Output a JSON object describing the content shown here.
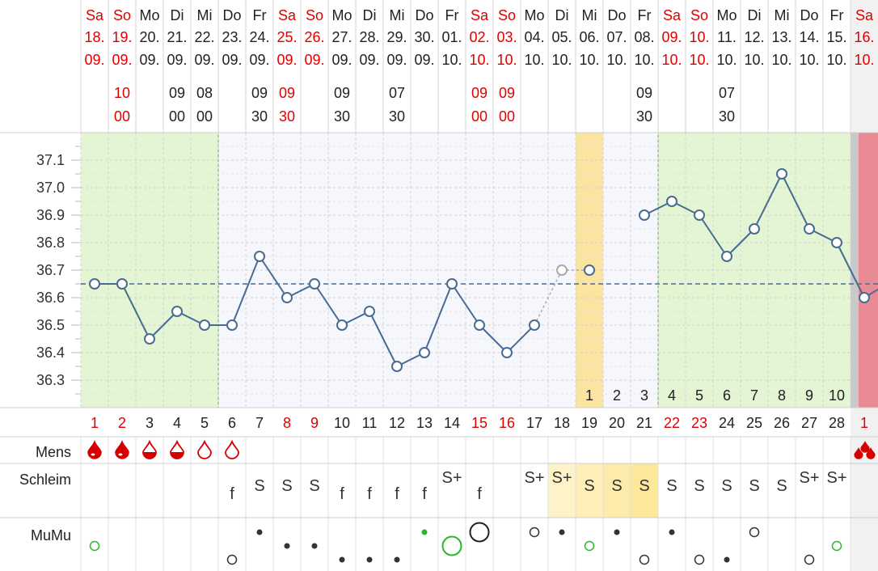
{
  "colors": {
    "weekend": "#e00000",
    "weekday": "#222222",
    "line": "#4a6b91",
    "infertile_bg": "#e3f5d2",
    "infertile_border": "#6aa84f",
    "ovulation_bg": "#fbe3a0",
    "mucus_highlight": "#fde89a",
    "blood": "#d40000",
    "next_cycle_bg": "#e88b94",
    "mumu_green": "#2db52d"
  },
  "chart_data": {
    "type": "line",
    "title": "",
    "ylabel": "",
    "ylim": [
      36.2,
      37.2
    ],
    "yticks": [
      "37.1",
      "37.0",
      "36.9",
      "36.8",
      "36.7",
      "36.6",
      "36.5",
      "36.4",
      "36.3"
    ],
    "coverline": 36.65,
    "days": [
      {
        "wd": "Sa",
        "d": "18.",
        "m": "09.",
        "hh": "",
        "mm": "",
        "cd": "1",
        "we": true,
        "temp": 36.65
      },
      {
        "wd": "So",
        "d": "19.",
        "m": "09.",
        "hh": "10",
        "mm": "00",
        "cd": "2",
        "we": true,
        "temp": 36.65
      },
      {
        "wd": "Mo",
        "d": "20.",
        "m": "09.",
        "hh": "",
        "mm": "",
        "cd": "3",
        "we": false,
        "temp": 36.45
      },
      {
        "wd": "Di",
        "d": "21.",
        "m": "09.",
        "hh": "09",
        "mm": "00",
        "cd": "4",
        "we": false,
        "temp": 36.55
      },
      {
        "wd": "Mi",
        "d": "22.",
        "m": "09.",
        "hh": "08",
        "mm": "00",
        "cd": "5",
        "we": false,
        "temp": 36.5
      },
      {
        "wd": "Do",
        "d": "23.",
        "m": "09.",
        "hh": "",
        "mm": "",
        "cd": "6",
        "we": false,
        "temp": 36.5
      },
      {
        "wd": "Fr",
        "d": "24.",
        "m": "09.",
        "hh": "09",
        "mm": "30",
        "cd": "7",
        "we": false,
        "temp": 36.75
      },
      {
        "wd": "Sa",
        "d": "25.",
        "m": "09.",
        "hh": "09",
        "mm": "30",
        "cd": "8",
        "we": true,
        "temp": 36.6
      },
      {
        "wd": "So",
        "d": "26.",
        "m": "09.",
        "hh": "",
        "mm": "",
        "cd": "9",
        "we": true,
        "temp": 36.65
      },
      {
        "wd": "Mo",
        "d": "27.",
        "m": "09.",
        "hh": "09",
        "mm": "30",
        "cd": "10",
        "we": false,
        "temp": 36.5
      },
      {
        "wd": "Di",
        "d": "28.",
        "m": "09.",
        "hh": "",
        "mm": "",
        "cd": "11",
        "we": false,
        "temp": 36.55
      },
      {
        "wd": "Mi",
        "d": "29.",
        "m": "09.",
        "hh": "07",
        "mm": "30",
        "cd": "12",
        "we": false,
        "temp": 36.35
      },
      {
        "wd": "Do",
        "d": "30.",
        "m": "09.",
        "hh": "",
        "mm": "",
        "cd": "13",
        "we": false,
        "temp": 36.4
      },
      {
        "wd": "Fr",
        "d": "01.",
        "m": "10.",
        "hh": "",
        "mm": "",
        "cd": "14",
        "we": false,
        "temp": 36.65
      },
      {
        "wd": "Sa",
        "d": "02.",
        "m": "10.",
        "hh": "09",
        "mm": "00",
        "cd": "15",
        "we": true,
        "temp": 36.5
      },
      {
        "wd": "So",
        "d": "03.",
        "m": "10.",
        "hh": "09",
        "mm": "00",
        "cd": "16",
        "we": true,
        "temp": 36.4
      },
      {
        "wd": "Mo",
        "d": "04.",
        "m": "10.",
        "hh": "",
        "mm": "",
        "cd": "17",
        "we": false,
        "temp": 36.5
      },
      {
        "wd": "Di",
        "d": "05.",
        "m": "10.",
        "hh": "",
        "mm": "",
        "cd": "18",
        "we": false,
        "temp": 36.7,
        "excluded": true
      },
      {
        "wd": "Mi",
        "d": "06.",
        "m": "10.",
        "hh": "",
        "mm": "",
        "cd": "19",
        "we": false,
        "temp": 36.7
      },
      {
        "wd": "Do",
        "d": "07.",
        "m": "10.",
        "hh": "",
        "mm": "",
        "cd": "20",
        "we": false,
        "temp": null
      },
      {
        "wd": "Fr",
        "d": "08.",
        "m": "10.",
        "hh": "09",
        "mm": "30",
        "cd": "21",
        "we": false,
        "temp": 36.9
      },
      {
        "wd": "Sa",
        "d": "09.",
        "m": "10.",
        "hh": "",
        "mm": "",
        "cd": "22",
        "we": true,
        "temp": 36.95
      },
      {
        "wd": "So",
        "d": "10.",
        "m": "10.",
        "hh": "",
        "mm": "",
        "cd": "23",
        "we": true,
        "temp": 36.9
      },
      {
        "wd": "Mo",
        "d": "11.",
        "m": "10.",
        "hh": "07",
        "mm": "30",
        "cd": "24",
        "we": false,
        "temp": 36.75
      },
      {
        "wd": "Di",
        "d": "12.",
        "m": "10.",
        "hh": "",
        "mm": "",
        "cd": "25",
        "we": false,
        "temp": 36.85
      },
      {
        "wd": "Mi",
        "d": "13.",
        "m": "10.",
        "hh": "",
        "mm": "",
        "cd": "26",
        "we": false,
        "temp": 37.05
      },
      {
        "wd": "Do",
        "d": "14.",
        "m": "10.",
        "hh": "",
        "mm": "",
        "cd": "27",
        "we": false,
        "temp": 36.85
      },
      {
        "wd": "Fr",
        "d": "15.",
        "m": "10.",
        "hh": "",
        "mm": "",
        "cd": "28",
        "we": false,
        "temp": 36.8
      },
      {
        "wd": "Sa",
        "d": "16.",
        "m": "10.",
        "hh": "",
        "mm": "",
        "cd": "1",
        "we": true,
        "temp": 36.6
      }
    ],
    "phase_labels": [
      {
        "day": 19,
        "label": "1"
      },
      {
        "day": 20,
        "label": "2"
      },
      {
        "day": 21,
        "label": "3"
      },
      {
        "day": 22,
        "label": "4"
      },
      {
        "day": 23,
        "label": "5"
      },
      {
        "day": 24,
        "label": "6"
      },
      {
        "day": 25,
        "label": "7"
      },
      {
        "day": 26,
        "label": "8"
      },
      {
        "day": 27,
        "label": "9"
      },
      {
        "day": 28,
        "label": "10"
      }
    ],
    "infertile_ranges": [
      [
        1,
        5
      ],
      [
        22,
        28
      ]
    ],
    "ovulation_day": 19,
    "mens": [
      "full",
      "full",
      "half",
      "half",
      "empty",
      "empty",
      "",
      "",
      "",
      "",
      "",
      "",
      "",
      "",
      "",
      "",
      "",
      "",
      "",
      "",
      "",
      "",
      "",
      "",
      "",
      "",
      "",
      "",
      "drops"
    ],
    "mucus": [
      "",
      "",
      "",
      "",
      "",
      "f",
      "S",
      "S",
      "S",
      "f",
      "f",
      "f",
      "f",
      "S+",
      "f",
      "",
      "S+",
      "S+",
      "S",
      "S",
      "S",
      "S",
      "S",
      "S",
      "S",
      "S",
      "S+",
      "S+",
      ""
    ],
    "mucus_highlight_days": [
      18,
      19,
      20,
      21
    ],
    "mumu": [
      {
        "day": 1,
        "type": "circle-green-small",
        "pos": "mid"
      },
      {
        "day": 6,
        "type": "circle-small",
        "pos": "low"
      },
      {
        "day": 7,
        "type": "dot",
        "pos": "high"
      },
      {
        "day": 8,
        "type": "dot",
        "pos": "mid"
      },
      {
        "day": 9,
        "type": "dot",
        "pos": "mid"
      },
      {
        "day": 10,
        "type": "dot",
        "pos": "low"
      },
      {
        "day": 11,
        "type": "dot",
        "pos": "low"
      },
      {
        "day": 12,
        "type": "dot",
        "pos": "low"
      },
      {
        "day": 13,
        "type": "dot-green",
        "pos": "high"
      },
      {
        "day": 14,
        "type": "circle-green-large",
        "pos": "mid"
      },
      {
        "day": 15,
        "type": "circle-large",
        "pos": "high"
      },
      {
        "day": 17,
        "type": "circle-small",
        "pos": "high"
      },
      {
        "day": 18,
        "type": "dot",
        "pos": "high"
      },
      {
        "day": 19,
        "type": "circle-green-small",
        "pos": "mid"
      },
      {
        "day": 20,
        "type": "dot",
        "pos": "high"
      },
      {
        "day": 21,
        "type": "circle-small",
        "pos": "low"
      },
      {
        "day": 22,
        "type": "dot",
        "pos": "high"
      },
      {
        "day": 23,
        "type": "circle-small",
        "pos": "low"
      },
      {
        "day": 24,
        "type": "dot",
        "pos": "low"
      },
      {
        "day": 25,
        "type": "circle-small",
        "pos": "high"
      },
      {
        "day": 27,
        "type": "circle-small",
        "pos": "low"
      },
      {
        "day": 28,
        "type": "circle-green-small",
        "pos": "mid"
      }
    ]
  },
  "rows": {
    "mens_label": "Mens",
    "mucus_label": "Schleim",
    "mumu_label": "MuMu"
  }
}
